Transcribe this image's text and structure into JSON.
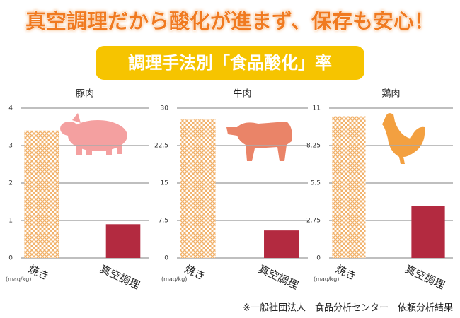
{
  "headline": "真空調理だから酸化が進まず、保存も安心！",
  "banner": "調理手法別「食品酸化」率",
  "chart_data": [
    {
      "type": "bar",
      "title": "豚肉",
      "categories": [
        "焼き",
        "真空調理"
      ],
      "values": [
        3.4,
        0.9
      ],
      "colors": [
        "#f0a858",
        "#b32a40"
      ],
      "ylim": [
        0,
        4
      ],
      "yticks": [
        0,
        1,
        2,
        3,
        4
      ],
      "y_label": "(maq/kg)",
      "grid": true
    },
    {
      "type": "bar",
      "title": "牛肉",
      "categories": [
        "焼き",
        "真空調理"
      ],
      "values": [
        27.7,
        5.5
      ],
      "colors": [
        "#f0a858",
        "#b32a40"
      ],
      "ylim": [
        0,
        30
      ],
      "yticks": [
        0,
        7.5,
        15,
        22.5,
        30
      ],
      "y_label": "(maq/kg)",
      "grid": true
    },
    {
      "type": "bar",
      "title": "鶏肉",
      "categories": [
        "焼き",
        "真空調理"
      ],
      "values": [
        10.4,
        3.8
      ],
      "colors": [
        "#f0a858",
        "#b32a40"
      ],
      "ylim": [
        0,
        11
      ],
      "yticks": [
        0,
        2.75,
        5.5,
        8.25,
        11
      ],
      "y_label": "(maq/kg)",
      "grid": true
    }
  ],
  "footer": "※一般社団法人　食品分析センター　依頼分析結果"
}
